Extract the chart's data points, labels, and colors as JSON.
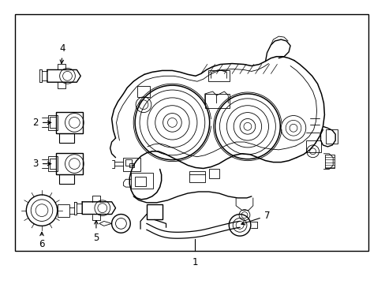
{
  "bg_color": "#ffffff",
  "border_color": "#000000",
  "line_color": "#000000",
  "text_color": "#000000",
  "fig_width": 4.89,
  "fig_height": 3.6,
  "dpi": 100,
  "label_fontsize": 8.5,
  "lw_main": 1.0,
  "lw_detail": 0.6,
  "lw_thin": 0.5
}
